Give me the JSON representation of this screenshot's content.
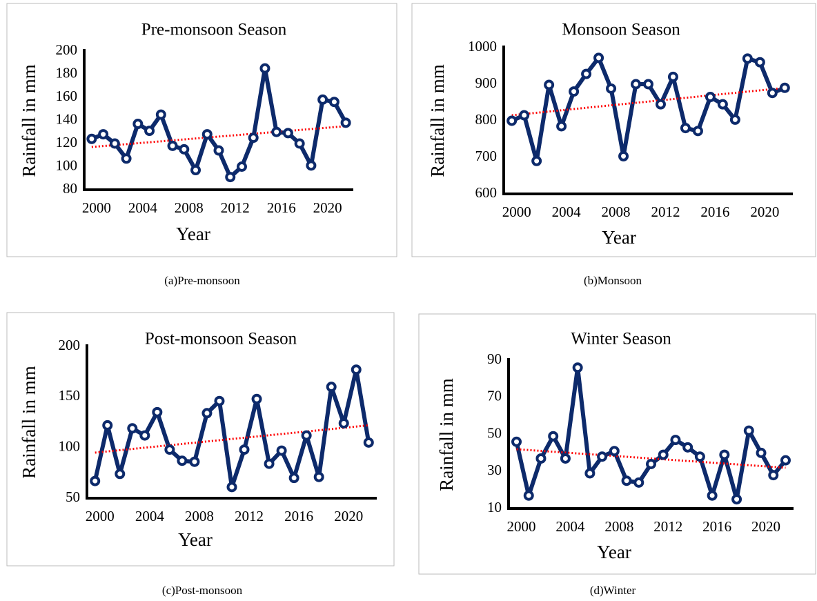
{
  "chart_data": [
    {
      "type": "line",
      "title": "Pre-monsoon Season",
      "caption": "(a)Pre-monsoon",
      "xlabel": "Year",
      "ylabel": "Rainfall in mm",
      "x": [
        2000,
        2001,
        2002,
        2003,
        2004,
        2005,
        2006,
        2007,
        2008,
        2009,
        2010,
        2011,
        2012,
        2013,
        2014,
        2015,
        2016,
        2017,
        2018,
        2019,
        2020,
        2021,
        2022
      ],
      "values": [
        124,
        128,
        120,
        107,
        137,
        131,
        145,
        118,
        115,
        97,
        128,
        114,
        91,
        100,
        125,
        185,
        130,
        129,
        120,
        101,
        158,
        156,
        138
      ],
      "color": "#0d2a6b",
      "trend": [
        117,
        135
      ],
      "trend_color": "#ff0000",
      "xlim": [
        1999.35,
        2022.65
      ],
      "xticks": [
        2000,
        2004,
        2008,
        2012,
        2016,
        2020
      ],
      "ylim": [
        80,
        200
      ],
      "yticks": [
        80,
        100,
        120,
        140,
        160,
        180,
        200
      ],
      "grid": false
    },
    {
      "type": "line",
      "title": "Monsoon Season",
      "caption": "(b)Monsoon",
      "xlabel": "Year",
      "ylabel": "Rainfall in mm",
      "x": [
        2000,
        2001,
        2002,
        2003,
        2004,
        2005,
        2006,
        2007,
        2008,
        2009,
        2010,
        2011,
        2012,
        2013,
        2014,
        2015,
        2016,
        2017,
        2018,
        2019,
        2020,
        2021,
        2022
      ],
      "values": [
        800,
        815,
        690,
        898,
        785,
        880,
        928,
        972,
        888,
        703,
        900,
        900,
        845,
        920,
        780,
        772,
        865,
        845,
        803,
        970,
        960,
        876,
        890
      ],
      "color": "#0d2a6b",
      "trend": [
        815,
        890
      ],
      "trend_color": "#ff0000",
      "xlim": [
        1999.35,
        2022.65
      ],
      "xticks": [
        2000,
        2004,
        2008,
        2012,
        2016,
        2020
      ],
      "ylim": [
        600,
        1000
      ],
      "yticks": [
        600,
        700,
        800,
        900,
        1000
      ],
      "grid": false
    },
    {
      "type": "line",
      "title": "Post-monsoon Season",
      "caption": "(c)Post-monsoon",
      "xlabel": "Year",
      "ylabel": "Rainfall in mm",
      "x": [
        2000,
        2001,
        2002,
        2003,
        2004,
        2005,
        2006,
        2007,
        2008,
        2009,
        2010,
        2011,
        2012,
        2013,
        2014,
        2015,
        2016,
        2017,
        2018,
        2019,
        2020,
        2021,
        2022
      ],
      "values": [
        67,
        122,
        74,
        119,
        112,
        135,
        98,
        87,
        86,
        134,
        146,
        61,
        98,
        148,
        84,
        97,
        70,
        112,
        71,
        160,
        124,
        177,
        105
      ],
      "color": "#0d2a6b",
      "trend": [
        95,
        122
      ],
      "trend_color": "#ff0000",
      "xlim": [
        1999.35,
        2022.65
      ],
      "xticks": [
        2000,
        2004,
        2008,
        2012,
        2016,
        2020
      ],
      "ylim": [
        50,
        200
      ],
      "yticks": [
        50,
        100,
        150,
        200
      ],
      "grid": false
    },
    {
      "type": "line",
      "title": "Winter Season",
      "caption": "(d)Winter",
      "xlabel": "Year",
      "ylabel": "Rainfall in mm",
      "x": [
        2000,
        2001,
        2002,
        2003,
        2004,
        2005,
        2006,
        2007,
        2008,
        2009,
        2010,
        2011,
        2012,
        2013,
        2014,
        2015,
        2016,
        2017,
        2018,
        2019,
        2020,
        2021,
        2022
      ],
      "values": [
        46,
        17,
        37,
        49,
        37,
        86,
        29,
        38,
        41,
        25,
        24,
        34,
        39,
        47,
        43,
        38,
        17,
        39,
        15,
        52,
        40,
        28,
        36
      ],
      "color": "#0d2a6b",
      "trend": [
        42,
        32
      ],
      "trend_color": "#ff0000",
      "xlim": [
        1999.35,
        2022.65
      ],
      "xticks": [
        2000,
        2004,
        2008,
        2012,
        2016,
        2020
      ],
      "ylim": [
        10,
        90
      ],
      "yticks": [
        10,
        30,
        50,
        70,
        90
      ],
      "grid": false
    }
  ]
}
